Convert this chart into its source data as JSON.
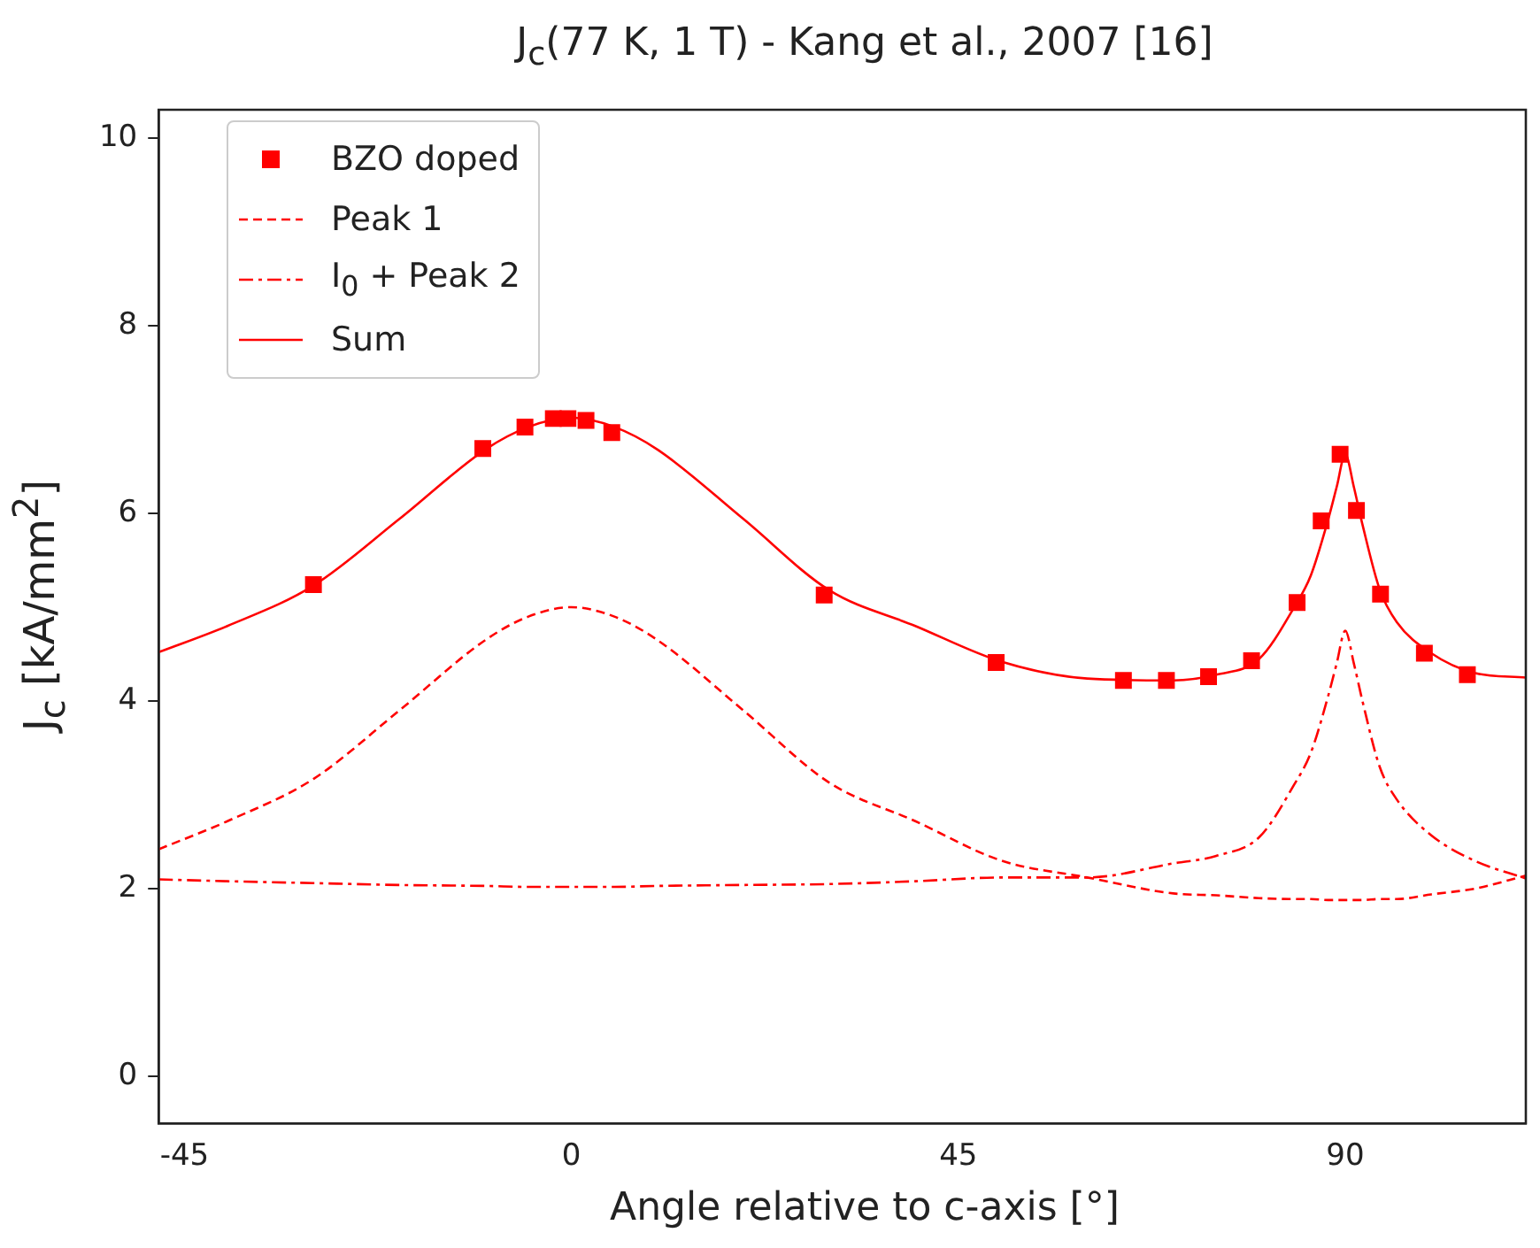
{
  "chart_data": {
    "type": "line",
    "title": "J$_{c}$(77 K, 1 T) - Kang et al., 2007 [16]",
    "xlabel": "Angle relative to c-axis [°]",
    "ylabel": "J$_{c}$ [kA/mm$^{2}$]",
    "xlim": [
      -48,
      111
    ],
    "xticks": [
      -45,
      0,
      45,
      90
    ],
    "ylim": [
      -0.5,
      10.3
    ],
    "yticks": [
      0,
      2,
      4,
      6,
      8,
      10
    ],
    "grid": false,
    "legend": "top left",
    "series": [
      {
        "name": "BZO doped",
        "type": "scatter",
        "color": "#ff0000",
        "marker": "square",
        "x": [
          -30,
          -10.3,
          -5.4,
          -2.1,
          -0.4,
          1.7,
          4.7,
          29.4,
          49.4,
          64.2,
          69.2,
          74.1,
          79.1,
          84.4,
          87.2,
          89.4,
          91.3,
          94.1,
          99.2,
          104.2
        ],
        "values": [
          5.24,
          6.69,
          6.92,
          7.01,
          7.01,
          6.99,
          6.86,
          5.13,
          4.41,
          4.22,
          4.22,
          4.26,
          4.43,
          5.05,
          5.92,
          6.63,
          6.03,
          5.14,
          4.51,
          4.28
        ]
      },
      {
        "name": "Peak 1",
        "color": "#ff0000",
        "marker": "none",
        "line_style": "dashed",
        "x": [
          -48,
          -40,
          -30,
          -20,
          -10,
          -5,
          0,
          5,
          10,
          20,
          30,
          40,
          50,
          60,
          70,
          75,
          80,
          84,
          86,
          88,
          89,
          90,
          91,
          92,
          94,
          96,
          100,
          105,
          111
        ],
        "values": [
          2.42,
          2.72,
          3.17,
          3.9,
          4.65,
          4.9,
          5.0,
          4.9,
          4.65,
          3.9,
          3.13,
          2.72,
          2.3,
          2.12,
          1.95,
          1.93,
          1.9,
          1.89,
          1.89,
          1.88,
          1.88,
          1.88,
          1.88,
          1.88,
          1.89,
          1.89,
          1.94,
          2.0,
          2.14
        ]
      },
      {
        "name": "I$_{0}$ + Peak 2",
        "color": "#ff0000",
        "marker": "none",
        "line_style": "dashdot",
        "x": [
          -48,
          -40,
          -30,
          -20,
          -10,
          -5,
          0,
          5,
          10,
          20,
          30,
          40,
          50,
          60,
          70,
          75,
          80,
          84,
          86,
          88,
          89,
          90,
          91,
          92,
          94,
          96,
          100,
          105,
          111
        ],
        "values": [
          2.1,
          2.08,
          2.06,
          2.04,
          2.03,
          2.02,
          2.02,
          2.02,
          2.03,
          2.04,
          2.05,
          2.08,
          2.12,
          2.12,
          2.27,
          2.35,
          2.55,
          3.1,
          3.45,
          4.05,
          4.4,
          4.75,
          4.4,
          4.0,
          3.3,
          2.95,
          2.57,
          2.3,
          2.11
        ]
      },
      {
        "name": "Sum",
        "color": "#ff0000",
        "marker": "none",
        "line_style": "solid",
        "x": [
          -48,
          -40,
          -30,
          -20,
          -10,
          -5,
          0,
          5,
          10,
          20,
          30,
          40,
          50,
          60,
          70,
          75,
          80,
          84,
          86,
          88,
          89,
          90,
          91,
          92,
          94,
          96,
          100,
          105,
          111
        ],
        "values": [
          4.52,
          4.8,
          5.23,
          5.94,
          6.68,
          6.92,
          7.02,
          6.92,
          6.68,
          5.94,
          5.18,
          4.8,
          4.42,
          4.24,
          4.22,
          4.28,
          4.45,
          4.99,
          5.34,
          5.93,
          6.28,
          6.63,
          6.28,
          5.88,
          5.19,
          4.84,
          4.51,
          4.3,
          4.25
        ]
      }
    ]
  }
}
